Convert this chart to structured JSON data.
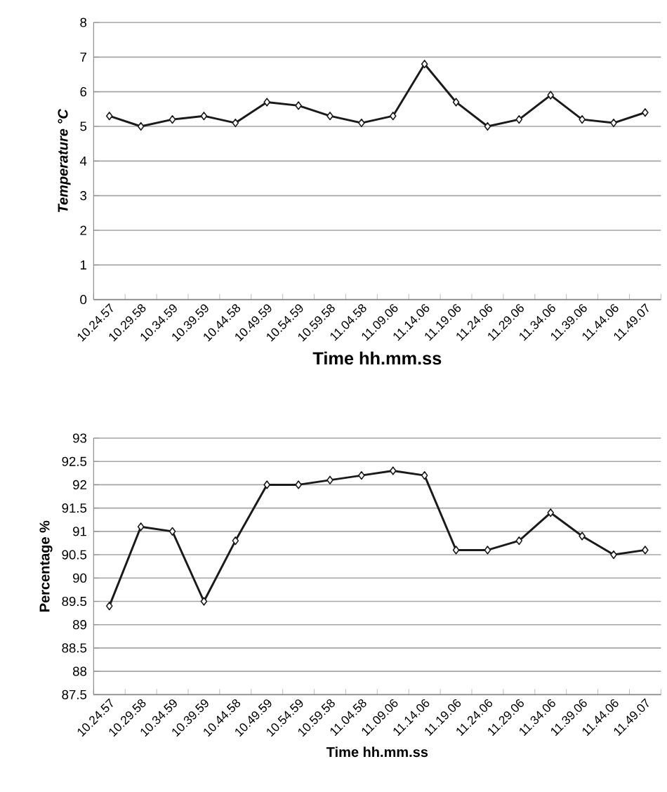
{
  "chart_data": [
    {
      "type": "line",
      "xlabel": "Time hh.mm.ss",
      "ylabel": "Temperature °C",
      "categories": [
        "10.24.57",
        "10.29.58",
        "10.34.59",
        "10.39.59",
        "10.44.58",
        "10.49.59",
        "10.54.59",
        "10.59.58",
        "11.04.58",
        "11.09.06",
        "11.14.06",
        "11.19.06",
        "11.24.06",
        "11.29.06",
        "11.34.06",
        "11.39.06",
        "11.44.06",
        "11.49.07"
      ],
      "values": [
        5.3,
        5.0,
        5.2,
        5.3,
        5.1,
        5.7,
        5.6,
        5.3,
        5.1,
        5.3,
        6.8,
        5.7,
        5.0,
        5.2,
        5.9,
        5.2,
        5.1,
        5.4
      ],
      "color": "#1a1a1a",
      "ylim": [
        0,
        8
      ],
      "yticks": [
        0,
        1,
        2,
        3,
        4,
        5,
        6,
        7,
        8
      ],
      "grid": "y",
      "marker": "diamond",
      "line_style": "solid"
    },
    {
      "type": "line",
      "xlabel": "Time hh.mm.ss",
      "ylabel": "Percentage %",
      "categories": [
        "10.24.57",
        "10.29.58",
        "10.34.59",
        "10.39.59",
        "10.44.58",
        "10.49.59",
        "10.54.59",
        "10.59.58",
        "11.04.58",
        "11.09.06",
        "11.14.06",
        "11.19.06",
        "11.24.06",
        "11.29.06",
        "11.34.06",
        "11.39.06",
        "11.44.06",
        "11.49.07"
      ],
      "values": [
        89.4,
        91.1,
        91.0,
        89.5,
        90.8,
        92.0,
        92.0,
        92.1,
        92.2,
        92.3,
        92.2,
        90.6,
        90.6,
        90.8,
        91.4,
        90.9,
        90.5,
        90.6
      ],
      "color": "#1a1a1a",
      "ylim": [
        87.5,
        93
      ],
      "yticks": [
        87.5,
        88,
        88.5,
        89,
        89.5,
        90,
        90.5,
        91,
        91.5,
        92,
        92.5,
        93
      ],
      "grid": "y",
      "marker": "diamond",
      "line_style": "solid"
    }
  ]
}
